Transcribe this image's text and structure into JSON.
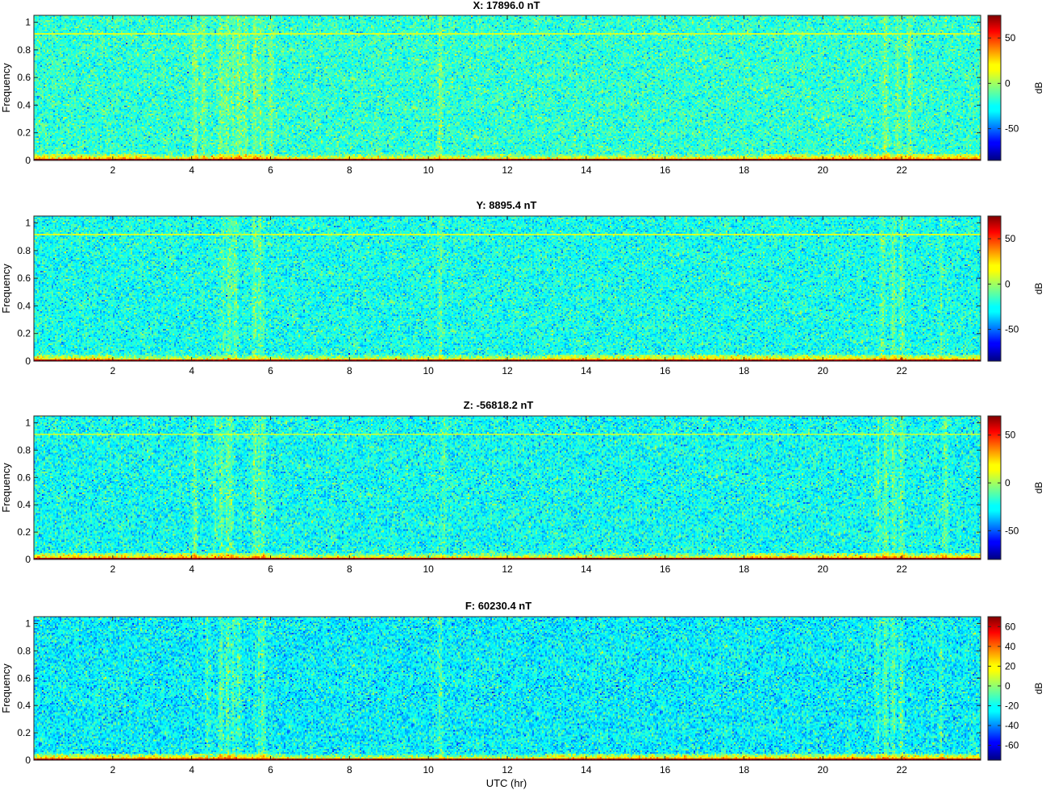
{
  "chart_data": [
    {
      "type": "heatmap",
      "title": "X: 17896.0 nT",
      "xlabel": "",
      "ylabel": "Frequency",
      "xlim": [
        0,
        24
      ],
      "ylim": [
        0,
        1.05
      ],
      "xticks": [
        2,
        4,
        6,
        8,
        10,
        12,
        14,
        16,
        18,
        20,
        22
      ],
      "xtick_labels": [
        "2",
        "4",
        "6",
        "8",
        "10",
        "12",
        "14",
        "16",
        "18",
        "20",
        "22"
      ],
      "yticks": [
        0,
        0.2,
        0.4,
        0.6,
        0.8,
        1
      ],
      "ytick_labels": [
        "0",
        "0.2",
        "0.4",
        "0.6",
        "0.8",
        "1"
      ],
      "colorbar": {
        "label": "dB",
        "range": [
          -85,
          75
        ],
        "ticks": [
          -50,
          0,
          50
        ],
        "tick_labels": [
          "-50",
          "0",
          "50"
        ],
        "colormap": "jet"
      },
      "features": {
        "background_db": -18,
        "low_freq_band_db": 70,
        "harmonic_line_freq": 0.92,
        "vertical_bursts_hr": [
          4.1,
          4.3,
          4.75,
          4.9,
          5.05,
          5.2,
          5.35,
          5.6,
          5.75,
          6.0,
          10.3,
          21.6,
          21.9,
          22.2
        ],
        "elevated_low_freq_hr": [
          [
            0,
            3
          ],
          [
            4.5,
            6
          ],
          [
            18.5,
            24
          ]
        ]
      }
    },
    {
      "type": "heatmap",
      "title": "Y: 8895.4 nT",
      "xlabel": "",
      "ylabel": "Frequency",
      "xlim": [
        0,
        24
      ],
      "ylim": [
        0,
        1.05
      ],
      "xticks": [
        2,
        4,
        6,
        8,
        10,
        12,
        14,
        16,
        18,
        20,
        22
      ],
      "xtick_labels": [
        "2",
        "4",
        "6",
        "8",
        "10",
        "12",
        "14",
        "16",
        "18",
        "20",
        "22"
      ],
      "yticks": [
        0,
        0.2,
        0.4,
        0.6,
        0.8,
        1
      ],
      "ytick_labels": [
        "0",
        "0.2",
        "0.4",
        "0.6",
        "0.8",
        "1"
      ],
      "colorbar": {
        "label": "dB",
        "range": [
          -85,
          75
        ],
        "ticks": [
          -50,
          0,
          50
        ],
        "tick_labels": [
          "-50",
          "0",
          "50"
        ],
        "colormap": "jet"
      },
      "features": {
        "background_db": -22,
        "low_freq_band_db": 70,
        "harmonic_line_freq": 0.92,
        "vertical_bursts_hr": [
          4.8,
          4.95,
          5.1,
          5.6,
          5.7,
          5.75,
          10.3,
          21.5,
          21.8,
          22.0,
          23.0
        ],
        "elevated_low_freq_hr": [
          [
            0,
            2
          ],
          [
            13,
            24
          ]
        ]
      }
    },
    {
      "type": "heatmap",
      "title": "Z: -56818.2 nT",
      "xlabel": "",
      "ylabel": "Frequency",
      "xlim": [
        0,
        24
      ],
      "ylim": [
        0,
        1.05
      ],
      "xticks": [
        2,
        4,
        6,
        8,
        10,
        12,
        14,
        16,
        18,
        20,
        22
      ],
      "xtick_labels": [
        "2",
        "4",
        "6",
        "8",
        "10",
        "12",
        "14",
        "16",
        "18",
        "20",
        "22"
      ],
      "yticks": [
        0,
        0.2,
        0.4,
        0.6,
        0.8,
        1
      ],
      "ytick_labels": [
        "0",
        "0.2",
        "0.4",
        "0.6",
        "0.8",
        "1"
      ],
      "colorbar": {
        "label": "dB",
        "range": [
          -80,
          70
        ],
        "ticks": [
          -50,
          0,
          50
        ],
        "tick_labels": [
          "-50",
          "0",
          "50"
        ],
        "colormap": "jet"
      },
      "features": {
        "background_db": -22,
        "low_freq_band_db": 65,
        "harmonic_line_freq": 0.92,
        "vertical_bursts_hr": [
          4.1,
          4.6,
          4.75,
          4.9,
          5.0,
          5.6,
          5.7,
          5.8,
          10.4,
          21.4,
          21.6,
          21.8,
          22.0,
          23.1
        ],
        "elevated_low_freq_hr": [
          [
            0,
            6
          ],
          [
            18,
            24
          ]
        ]
      }
    },
    {
      "type": "heatmap",
      "title": "F: 60230.4 nT",
      "xlabel": "UTC (hr)",
      "ylabel": "Frequency",
      "xlim": [
        0,
        24
      ],
      "ylim": [
        0,
        1.05
      ],
      "xticks": [
        2,
        4,
        6,
        8,
        10,
        12,
        14,
        16,
        18,
        20,
        22
      ],
      "xtick_labels": [
        "2",
        "4",
        "6",
        "8",
        "10",
        "12",
        "14",
        "16",
        "18",
        "20",
        "22"
      ],
      "yticks": [
        0,
        0.2,
        0.4,
        0.6,
        0.8,
        1
      ],
      "ytick_labels": [
        "0",
        "0.2",
        "0.4",
        "0.6",
        "0.8",
        "1"
      ],
      "colorbar": {
        "label": "dB",
        "range": [
          -75,
          70
        ],
        "ticks": [
          -60,
          -40,
          -20,
          0,
          20,
          40,
          60
        ],
        "tick_labels": [
          "-60",
          "-40",
          "-20",
          "0",
          "20",
          "40",
          "60"
        ],
        "colormap": "jet"
      },
      "features": {
        "background_db": -22,
        "low_freq_band_db": 65,
        "harmonic_line_freq": null,
        "vertical_bursts_hr": [
          4.4,
          4.75,
          4.9,
          5.05,
          5.2,
          5.7,
          5.8,
          10.3,
          21.4,
          21.6,
          21.8,
          22.0,
          23.0
        ],
        "elevated_low_freq_hr": [
          [
            0,
            6
          ],
          [
            13,
            24
          ]
        ]
      }
    }
  ]
}
